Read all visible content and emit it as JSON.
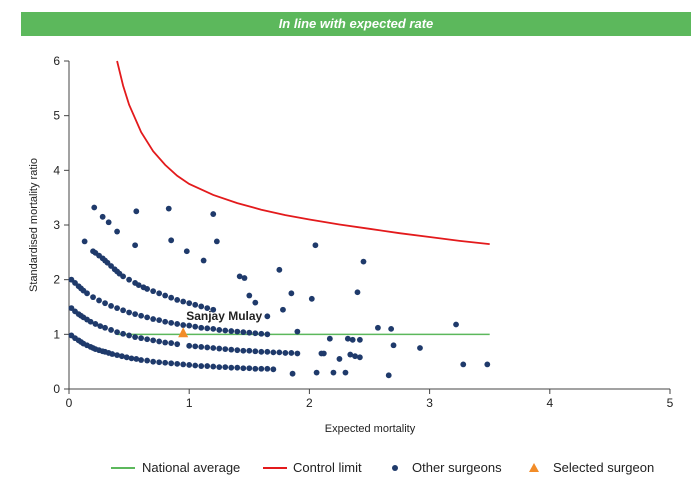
{
  "banner": {
    "text": "In line with expected rate"
  },
  "chart_data": {
    "type": "scatter",
    "xlabel": "Expected mortality",
    "ylabel": "Standardised mortality ratio",
    "xlim": [
      0,
      5
    ],
    "ylim": [
      0,
      6
    ],
    "xticks": [
      "0",
      "1",
      "2",
      "3",
      "4",
      "5"
    ],
    "yticks": [
      "0",
      "1",
      "2",
      "3",
      "4",
      "5",
      "6"
    ],
    "grid": false,
    "legend_position": "bottom",
    "colors": {
      "national_average": "#5cb85c",
      "control_limit": "#e31a1c",
      "other_surgeons": "#1f3a6b",
      "selected_surgeon": "#f28c28"
    },
    "series": [
      {
        "name": "National average",
        "type": "line",
        "x": [
          0.4,
          3.5
        ],
        "y": [
          1,
          1
        ]
      },
      {
        "name": "Control limit",
        "type": "line",
        "x": [
          0.4,
          0.45,
          0.5,
          0.6,
          0.7,
          0.8,
          0.9,
          1.0,
          1.2,
          1.4,
          1.6,
          1.8,
          2.0,
          2.25,
          2.5,
          2.75,
          3.0,
          3.25,
          3.5
        ],
        "y": [
          6.0,
          5.55,
          5.2,
          4.7,
          4.35,
          4.1,
          3.9,
          3.75,
          3.55,
          3.4,
          3.28,
          3.18,
          3.1,
          3.01,
          2.93,
          2.85,
          2.78,
          2.71,
          2.65
        ]
      },
      {
        "name": "Other surgeons",
        "type": "scatter",
        "x": [
          0.02,
          0.05,
          0.08,
          0.1,
          0.12,
          0.15,
          0.18,
          0.2,
          0.22,
          0.25,
          0.28,
          0.3,
          0.33,
          0.36,
          0.4,
          0.44,
          0.48,
          0.52,
          0.56,
          0.6,
          0.65,
          0.7,
          0.75,
          0.8,
          0.85,
          0.9,
          0.95,
          1.0,
          1.05,
          1.1,
          1.15,
          1.2,
          1.25,
          1.3,
          1.35,
          1.4,
          1.45,
          1.5,
          1.55,
          1.6,
          1.65,
          1.7,
          0.02,
          0.05,
          0.08,
          0.1,
          0.12,
          0.15,
          0.18,
          0.22,
          0.26,
          0.3,
          0.35,
          0.4,
          0.45,
          0.5,
          0.55,
          0.6,
          0.65,
          0.7,
          0.75,
          0.8,
          0.85,
          0.9,
          1.0,
          1.05,
          1.1,
          1.15,
          1.2,
          1.25,
          1.3,
          1.35,
          1.4,
          1.45,
          1.5,
          1.55,
          1.6,
          1.65,
          1.7,
          1.75,
          1.8,
          1.85,
          1.9,
          0.02,
          0.05,
          0.08,
          0.1,
          0.12,
          0.15,
          0.2,
          0.25,
          0.3,
          0.35,
          0.4,
          0.45,
          0.5,
          0.55,
          0.6,
          0.65,
          0.7,
          0.75,
          0.8,
          0.85,
          0.9,
          0.95,
          1.0,
          1.05,
          1.1,
          1.15,
          1.2,
          1.25,
          1.3,
          1.35,
          1.4,
          1.45,
          1.5,
          1.55,
          1.6,
          1.65,
          0.2,
          0.22,
          0.25,
          0.28,
          0.3,
          0.32,
          0.35,
          0.38,
          0.4,
          0.42,
          0.45,
          0.5,
          0.55,
          0.58,
          0.62,
          0.65,
          0.7,
          0.75,
          0.8,
          0.85,
          0.9,
          0.95,
          1.0,
          1.05,
          1.1,
          1.15,
          1.2,
          0.13,
          0.21,
          0.28,
          0.33,
          0.4,
          0.55,
          0.56,
          0.83,
          0.85,
          0.98,
          1.12,
          1.2,
          1.23,
          1.42,
          1.46,
          1.5,
          1.55,
          1.65,
          1.75,
          1.78,
          1.85,
          1.9,
          2.02,
          2.05,
          2.1,
          2.12,
          2.17,
          2.2,
          2.25,
          2.3,
          2.32,
          2.36,
          2.4,
          2.42,
          2.45,
          2.57,
          2.66,
          2.68,
          2.7,
          2.92,
          3.22,
          3.28,
          3.48,
          1.86,
          2.06,
          2.38,
          2.34,
          2.42
        ],
        "y": [
          0.98,
          0.93,
          0.89,
          0.86,
          0.83,
          0.8,
          0.77,
          0.75,
          0.73,
          0.71,
          0.69,
          0.68,
          0.66,
          0.64,
          0.62,
          0.6,
          0.58,
          0.56,
          0.55,
          0.53,
          0.52,
          0.5,
          0.49,
          0.48,
          0.47,
          0.46,
          0.45,
          0.44,
          0.43,
          0.42,
          0.42,
          0.41,
          0.4,
          0.4,
          0.39,
          0.39,
          0.38,
          0.38,
          0.37,
          0.37,
          0.37,
          0.36,
          1.48,
          1.42,
          1.37,
          1.34,
          1.31,
          1.27,
          1.23,
          1.19,
          1.15,
          1.12,
          1.08,
          1.04,
          1.01,
          0.98,
          0.95,
          0.93,
          0.91,
          0.89,
          0.87,
          0.85,
          0.84,
          0.82,
          0.79,
          0.78,
          0.77,
          0.76,
          0.75,
          0.74,
          0.73,
          0.72,
          0.71,
          0.7,
          0.7,
          0.69,
          0.68,
          0.68,
          0.67,
          0.67,
          0.66,
          0.66,
          0.65,
          2.0,
          1.94,
          1.88,
          1.84,
          1.8,
          1.75,
          1.68,
          1.62,
          1.57,
          1.52,
          1.48,
          1.44,
          1.4,
          1.37,
          1.34,
          1.31,
          1.28,
          1.26,
          1.23,
          1.21,
          1.19,
          1.17,
          1.16,
          1.14,
          1.12,
          1.11,
          1.1,
          1.08,
          1.07,
          1.06,
          1.05,
          1.04,
          1.03,
          1.02,
          1.01,
          1.0,
          2.52,
          2.49,
          2.44,
          2.39,
          2.35,
          2.31,
          2.25,
          2.19,
          2.15,
          2.11,
          2.06,
          2.0,
          1.94,
          1.9,
          1.86,
          1.83,
          1.79,
          1.75,
          1.71,
          1.67,
          1.63,
          1.6,
          1.57,
          1.54,
          1.51,
          1.48,
          1.45,
          2.7,
          3.32,
          3.15,
          3.05,
          2.88,
          2.63,
          3.25,
          3.3,
          2.72,
          2.52,
          2.35,
          3.2,
          2.7,
          2.06,
          2.03,
          1.71,
          1.58,
          1.33,
          2.18,
          1.45,
          1.75,
          1.05,
          1.65,
          2.63,
          0.65,
          0.65,
          0.92,
          0.3,
          0.55,
          0.3,
          0.92,
          0.9,
          1.77,
          0.9,
          2.33,
          1.12,
          0.25,
          1.1,
          0.8,
          0.75,
          1.18,
          0.45,
          0.45,
          0.28,
          0.3,
          0.6,
          0.63,
          0.58
        ]
      },
      {
        "name": "Selected surgeon",
        "type": "scatter",
        "x": [
          0.95
        ],
        "y": [
          1.02
        ],
        "label": "Sanjay Mulay"
      }
    ]
  },
  "legend": {
    "national_average": "National average",
    "control_limit": "Control limit",
    "other_surgeons": "Other surgeons",
    "selected_surgeon": "Selected surgeon"
  }
}
